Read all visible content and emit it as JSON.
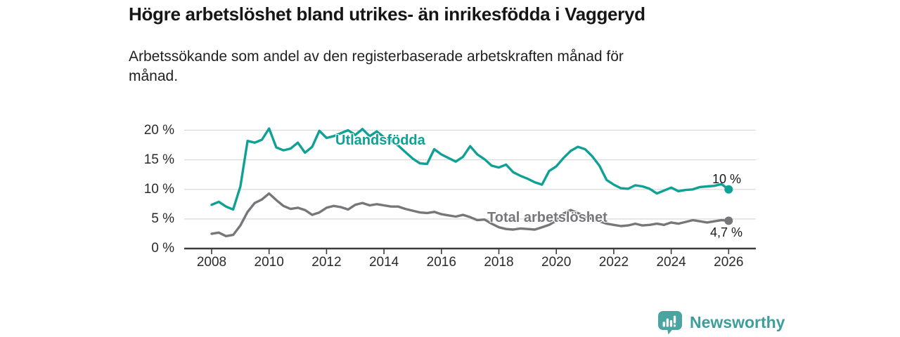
{
  "chart_data": {
    "type": "line",
    "title": "Högre arbetslöshet bland utrikes- än inrikesfödda i Vaggeryd",
    "subtitle": "Arbetssökande som andel av den registerbaserade arbetskraften månad för månad.",
    "subtitle_lines": [
      "Arbetssökande som andel av den registerbaserade arbetskraften månad för",
      "månad."
    ],
    "xlabel": "",
    "ylabel": "",
    "unit": "%",
    "grid": "horizontal",
    "legend_position": "inline-labels",
    "xlim": [
      2007.0,
      2027.0
    ],
    "ylim": [
      0,
      21
    ],
    "x_start": 2008.0,
    "x_end": 2026.0,
    "x_step_years": 0.25,
    "x_axis": {
      "ticks": [
        2008,
        2010,
        2012,
        2014,
        2016,
        2018,
        2020,
        2022,
        2024,
        2026
      ],
      "labels": [
        "2008",
        "2010",
        "2012",
        "2014",
        "2016",
        "2018",
        "2020",
        "2022",
        "2024",
        "2026"
      ]
    },
    "y_axis": {
      "ticks": [
        0,
        5,
        10,
        15,
        20
      ],
      "labels": [
        "0 %",
        "5 %",
        "10 %",
        "15 %",
        "20 %"
      ]
    },
    "series": [
      {
        "name": "Utlandsfödda",
        "color": "#0FA096",
        "end_value": 10.0,
        "end_value_label": "10 %",
        "values": [
          7.4,
          7.9,
          7.1,
          6.6,
          10.5,
          18.2,
          17.9,
          18.4,
          20.3,
          17.1,
          16.6,
          16.9,
          17.9,
          16.2,
          17.2,
          19.9,
          18.7,
          19.0,
          19.5,
          20.0,
          19.2,
          20.2,
          19.0,
          19.8,
          18.8,
          18.2,
          17.4,
          16.3,
          15.2,
          14.4,
          14.3,
          16.8,
          15.9,
          15.3,
          14.7,
          15.5,
          17.3,
          15.9,
          15.1,
          14.0,
          13.7,
          14.2,
          12.9,
          12.3,
          11.8,
          11.2,
          10.8,
          13.1,
          13.9,
          15.3,
          16.5,
          17.2,
          16.8,
          15.6,
          14.0,
          11.6,
          10.8,
          10.2,
          10.1,
          10.7,
          10.5,
          10.1,
          9.3,
          9.8,
          10.3,
          9.7,
          9.9,
          10.0,
          10.4,
          10.5,
          10.6,
          10.9,
          10.0
        ]
      },
      {
        "name": "Total arbetslöshet",
        "color": "#77777B",
        "end_value": 4.7,
        "end_value_label": "4,7 %",
        "values": [
          2.5,
          2.7,
          2.1,
          2.3,
          3.9,
          6.2,
          7.7,
          8.3,
          9.3,
          8.2,
          7.2,
          6.7,
          6.9,
          6.5,
          5.7,
          6.1,
          6.9,
          7.2,
          7.0,
          6.6,
          7.4,
          7.7,
          7.3,
          7.5,
          7.3,
          7.1,
          7.1,
          6.7,
          6.4,
          6.1,
          6.0,
          6.2,
          5.8,
          5.6,
          5.4,
          5.7,
          5.3,
          4.8,
          4.9,
          4.2,
          3.6,
          3.3,
          3.2,
          3.4,
          3.3,
          3.2,
          3.6,
          4.0,
          4.7,
          5.9,
          6.5,
          6.0,
          5.4,
          5.0,
          4.6,
          4.2,
          4.0,
          3.8,
          3.9,
          4.2,
          3.9,
          4.0,
          4.2,
          4.0,
          4.4,
          4.2,
          4.5,
          4.8,
          4.6,
          4.4,
          4.6,
          4.8,
          4.7
        ]
      }
    ],
    "colors": {
      "accent_teal": "#0FA096",
      "line_gray": "#77777B",
      "grid": "#DADADA",
      "axis": "#3C3C3C",
      "text_dark": "#161616"
    }
  },
  "footer": {
    "brand": "Newsworthy",
    "brand_color": "#3E9E9B",
    "brand_icon": "bar-chart-speech-bubble"
  }
}
